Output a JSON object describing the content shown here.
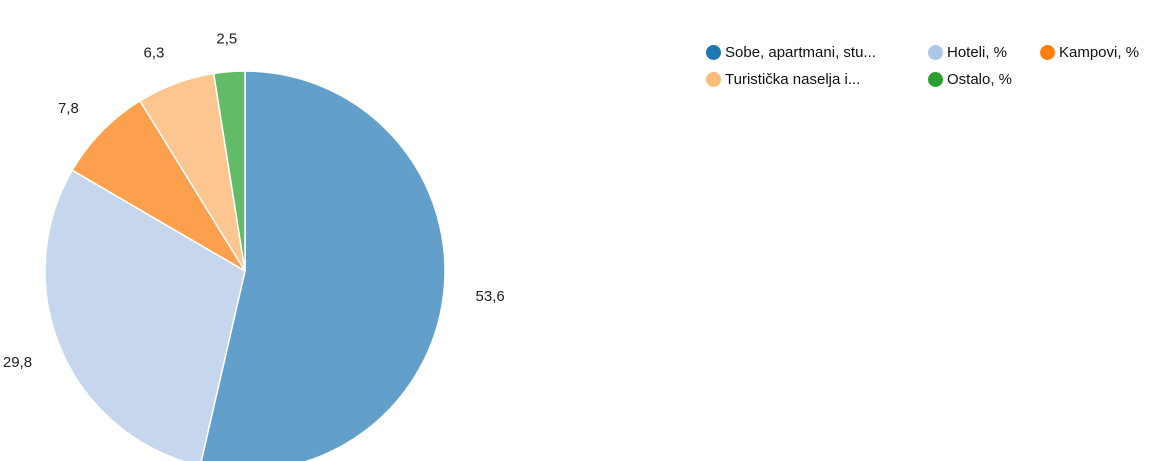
{
  "chart_data": {
    "type": "pie",
    "legend_position": "top-right",
    "series": [
      {
        "label": "Sobe, apartmani, stu...",
        "value": 53.6,
        "value_label": "53,6",
        "color": "#62a0cb"
      },
      {
        "label": "Hoteli, %",
        "value": 29.8,
        "value_label": "29,8",
        "color": "#c6d6ec"
      },
      {
        "label": "Kampovi, %",
        "value": 7.8,
        "value_label": "7,8",
        "color": "#fda04e"
      },
      {
        "label": "Turistička naselja i...",
        "value": 6.3,
        "value_label": "6,3",
        "color": "#fdc691"
      },
      {
        "label": "Ostalo, %",
        "value": 2.5,
        "value_label": "2,5",
        "color": "#62bb66"
      }
    ],
    "legend_colors": [
      "#1f77b4",
      "#aec7e8",
      "#ff7f0e",
      "#ffbb78",
      "#2ca02c"
    ]
  }
}
